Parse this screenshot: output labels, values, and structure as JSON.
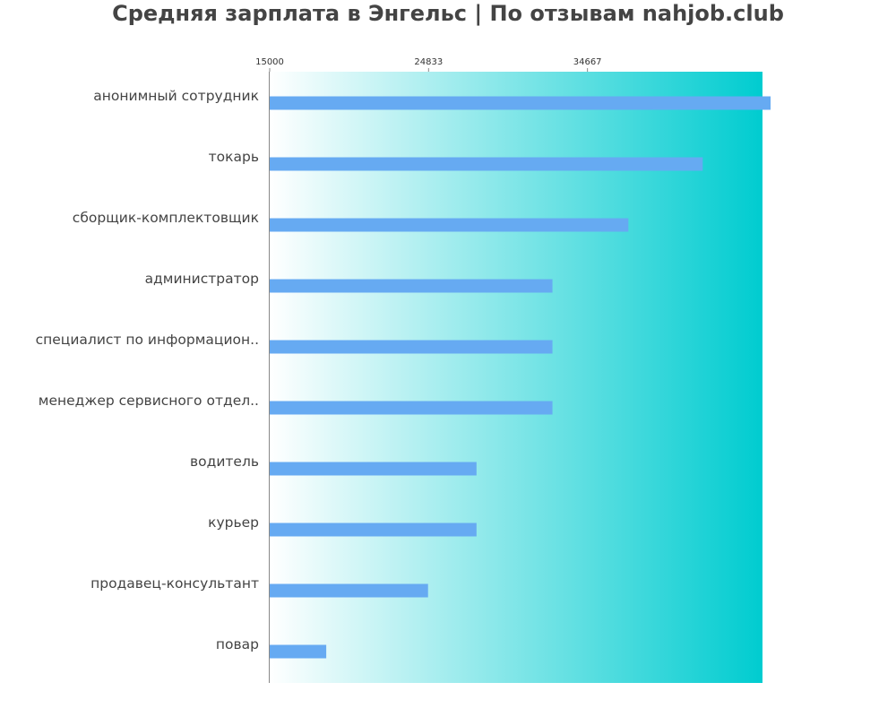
{
  "chart_data": {
    "type": "bar",
    "orientation": "horizontal",
    "title": "Средняя зарплата в Энгельс | По отзывам nahjob.club",
    "categories": [
      "анонимный сотрудник",
      "токарь",
      "сборщик-комплектовщик",
      "администратор",
      "специалист по информацион..",
      "менеджер сервисного отдел..",
      "водитель",
      "курьер",
      "продавец-консультант",
      "повар"
    ],
    "values": [
      46000,
      41800,
      37200,
      32500,
      32500,
      32500,
      27800,
      27800,
      24800,
      18500
    ],
    "xticks": [
      15000,
      24833,
      34667
    ],
    "tick_labels": [
      "15000",
      "24833",
      "34667"
    ],
    "xlim": [
      15000,
      45500
    ],
    "grid": false,
    "legend": "none",
    "colors": {
      "bar": "#66aaf2",
      "background_start": "#ffffff",
      "background_end": "#00ccd0",
      "axis": "#888888",
      "text": "#444444"
    }
  }
}
